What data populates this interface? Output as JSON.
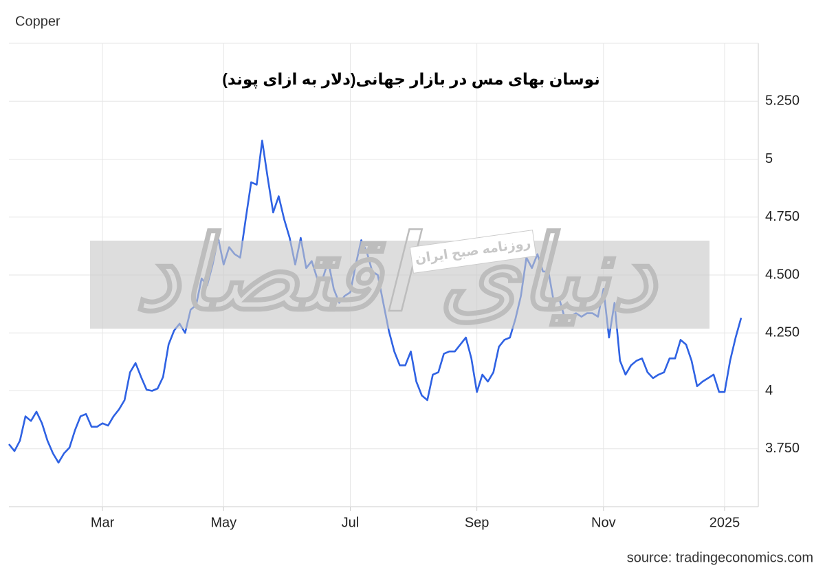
{
  "label": "Copper",
  "source": "source: tradingeconomics.com",
  "watermark": {
    "logo": "دنیای اقتصاد",
    "tagline": "روزنامه صبح ایران"
  },
  "chart_data": {
    "type": "line",
    "title": "نوسان بهای مس در بازار جهانی(دلار به ازای پوند)",
    "color": "#2f62e3",
    "grid": true,
    "ylim": [
      3.5,
      5.5
    ],
    "yticks": [
      {
        "value": 3.75,
        "label": "3.750"
      },
      4,
      {
        "value": 4.25,
        "label": "4.250"
      },
      {
        "value": 4.5,
        "label": "4.500"
      },
      {
        "value": 4.75,
        "label": "4.750"
      },
      5,
      {
        "value": 5.25,
        "label": "5.250"
      }
    ],
    "categories": [
      null,
      null,
      null,
      null,
      null,
      null,
      null,
      null,
      null,
      null,
      null,
      null,
      null,
      null,
      null,
      null,
      null,
      "Mar",
      null,
      null,
      null,
      null,
      null,
      null,
      null,
      null,
      null,
      null,
      null,
      null,
      null,
      null,
      null,
      null,
      null,
      null,
      null,
      null,
      null,
      "May",
      null,
      null,
      null,
      null,
      null,
      null,
      null,
      null,
      null,
      null,
      null,
      null,
      null,
      null,
      null,
      null,
      null,
      null,
      null,
      null,
      null,
      null,
      "Jul",
      null,
      null,
      null,
      null,
      null,
      null,
      null,
      null,
      null,
      null,
      null,
      null,
      null,
      null,
      null,
      null,
      null,
      null,
      null,
      null,
      null,
      null,
      "Sep",
      null,
      null,
      null,
      null,
      null,
      null,
      null,
      null,
      null,
      null,
      null,
      null,
      null,
      null,
      null,
      null,
      null,
      null,
      null,
      null,
      null,
      null,
      "Nov",
      null,
      null,
      null,
      null,
      null,
      null,
      null,
      null,
      null,
      null,
      null,
      null,
      null,
      null,
      null,
      null,
      null,
      null,
      null,
      null,
      null,
      "2025",
      null,
      null,
      null
    ],
    "values": [
      3.77,
      3.74,
      3.785,
      3.89,
      3.87,
      3.91,
      3.86,
      3.785,
      3.73,
      3.69,
      3.73,
      3.755,
      3.83,
      3.89,
      3.9,
      3.845,
      3.845,
      3.86,
      3.85,
      3.89,
      3.92,
      3.96,
      4.08,
      4.12,
      4.06,
      4.005,
      4.0,
      4.01,
      4.06,
      4.2,
      4.26,
      4.29,
      4.25,
      4.35,
      4.37,
      4.485,
      4.455,
      4.545,
      4.66,
      4.545,
      4.62,
      4.59,
      4.575,
      4.74,
      4.9,
      4.89,
      5.08,
      4.92,
      4.77,
      4.84,
      4.74,
      4.66,
      4.545,
      4.66,
      4.53,
      4.56,
      4.485,
      4.485,
      4.56,
      4.44,
      4.38,
      4.41,
      4.425,
      4.545,
      4.65,
      4.6,
      4.515,
      4.5,
      4.38,
      4.26,
      4.17,
      4.11,
      4.11,
      4.17,
      4.04,
      3.98,
      3.96,
      4.07,
      4.08,
      4.16,
      4.17,
      4.17,
      4.2,
      4.23,
      4.14,
      3.995,
      4.07,
      4.04,
      4.08,
      4.19,
      4.22,
      4.23,
      4.31,
      4.41,
      4.575,
      4.53,
      4.59,
      4.515,
      4.515,
      4.38,
      4.395,
      4.31,
      4.32,
      4.335,
      4.32,
      4.335,
      4.335,
      4.32,
      4.44,
      4.23,
      4.38,
      4.13,
      4.07,
      4.11,
      4.13,
      4.14,
      4.08,
      4.055,
      4.07,
      4.08,
      4.14,
      4.14,
      4.22,
      4.2,
      4.13,
      4.02,
      4.04,
      4.055,
      4.07,
      3.995,
      3.995,
      4.13,
      4.23,
      4.315
    ]
  }
}
